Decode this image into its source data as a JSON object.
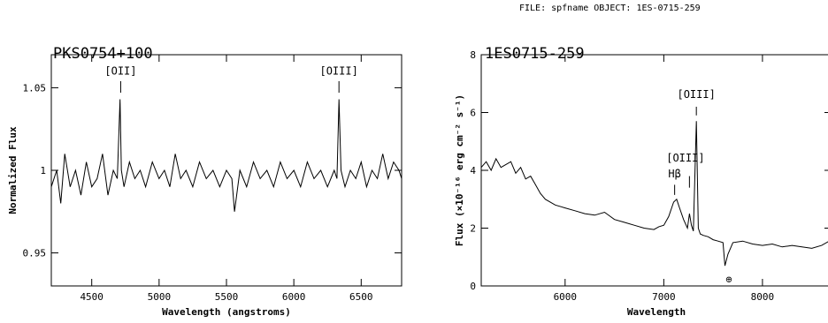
{
  "header": "FILE: spfname OBJECT: 1ES-0715-259",
  "chart_data": [
    {
      "type": "line",
      "title": "PKS0754+100",
      "xlabel": "Wavelength (angstroms)",
      "ylabel": "Normalized Flux",
      "xlim": [
        4200,
        6800
      ],
      "ylim": [
        0.93,
        1.07
      ],
      "xticks": [
        "4500",
        "5000",
        "5500",
        "6000",
        "6500"
      ],
      "yticks": [
        "0.95",
        "1",
        "1.05"
      ],
      "annotations": [
        "[OII]",
        "[OIII]"
      ],
      "series": [
        {
          "x": [
            4200,
            4240,
            4270,
            4300,
            4340,
            4380,
            4420,
            4460,
            4500,
            4540,
            4580,
            4620,
            4660,
            4690,
            4710,
            4720,
            4740,
            4780,
            4820,
            4860,
            4900,
            4950,
            5000,
            5040,
            5080,
            5120,
            5160,
            5200,
            5250,
            5300,
            5350,
            5400,
            5450,
            5500,
            5540,
            5560,
            5600,
            5650,
            5700,
            5750,
            5800,
            5850,
            5900,
            5950,
            6000,
            6050,
            6100,
            6150,
            6200,
            6250,
            6300,
            6320,
            6335,
            6350,
            6380,
            6420,
            6460,
            6500,
            6540,
            6580,
            6620,
            6660,
            6700,
            6740,
            6780,
            6800
          ],
          "y": [
            0.99,
            1.0,
            0.98,
            1.01,
            0.99,
            1.0,
            0.985,
            1.005,
            0.99,
            0.995,
            1.01,
            0.985,
            1.0,
            0.995,
            1.043,
            1.0,
            0.99,
            1.005,
            0.995,
            1.0,
            0.99,
            1.005,
            0.995,
            1.0,
            0.99,
            1.01,
            0.995,
            1.0,
            0.99,
            1.005,
            0.995,
            1.0,
            0.99,
            1.0,
            0.995,
            0.975,
            1.0,
            0.99,
            1.005,
            0.995,
            1.0,
            0.99,
            1.005,
            0.995,
            1.0,
            0.99,
            1.005,
            0.995,
            1.0,
            0.99,
            1.0,
            0.995,
            1.043,
            1.0,
            0.99,
            1.0,
            0.995,
            1.005,
            0.99,
            1.0,
            0.995,
            1.01,
            0.995,
            1.005,
            1.0,
            0.995
          ]
        }
      ]
    },
    {
      "type": "line",
      "title": "1ES0715-259",
      "xlabel": "Wavelength",
      "ylabel": "Flux (×10⁻¹⁶ erg cm⁻² s⁻¹)",
      "xlim": [
        5150,
        8700
      ],
      "ylim": [
        0,
        8
      ],
      "xticks": [
        "6000",
        "7000",
        "8000"
      ],
      "yticks": [
        "0",
        "2",
        "4",
        "6",
        "8"
      ],
      "annotations": [
        "[OIII]",
        "[OIII]",
        "Hβ",
        "⊕"
      ],
      "series": [
        {
          "x": [
            5150,
            5200,
            5250,
            5300,
            5350,
            5400,
            5450,
            5500,
            5550,
            5600,
            5650,
            5700,
            5750,
            5800,
            5900,
            6000,
            6100,
            6200,
            6300,
            6400,
            6500,
            6600,
            6700,
            6800,
            6900,
            6950,
            7000,
            7050,
            7100,
            7130,
            7160,
            7200,
            7240,
            7260,
            7280,
            7300,
            7330,
            7350,
            7370,
            7400,
            7450,
            7500,
            7550,
            7600,
            7620,
            7650,
            7700,
            7800,
            7900,
            8000,
            8100,
            8200,
            8300,
            8400,
            8500,
            8600,
            8700
          ],
          "y": [
            4.1,
            4.3,
            4.0,
            4.4,
            4.1,
            4.2,
            4.3,
            3.9,
            4.1,
            3.7,
            3.8,
            3.5,
            3.2,
            3.0,
            2.8,
            2.7,
            2.6,
            2.5,
            2.45,
            2.55,
            2.3,
            2.2,
            2.1,
            2.0,
            1.95,
            2.05,
            2.1,
            2.4,
            2.9,
            3.0,
            2.7,
            2.3,
            2.0,
            2.5,
            2.1,
            1.9,
            5.7,
            2.0,
            1.8,
            1.75,
            1.7,
            1.6,
            1.55,
            1.5,
            0.7,
            1.1,
            1.5,
            1.55,
            1.45,
            1.4,
            1.45,
            1.35,
            1.4,
            1.35,
            1.3,
            1.4,
            1.6
          ]
        }
      ]
    }
  ]
}
